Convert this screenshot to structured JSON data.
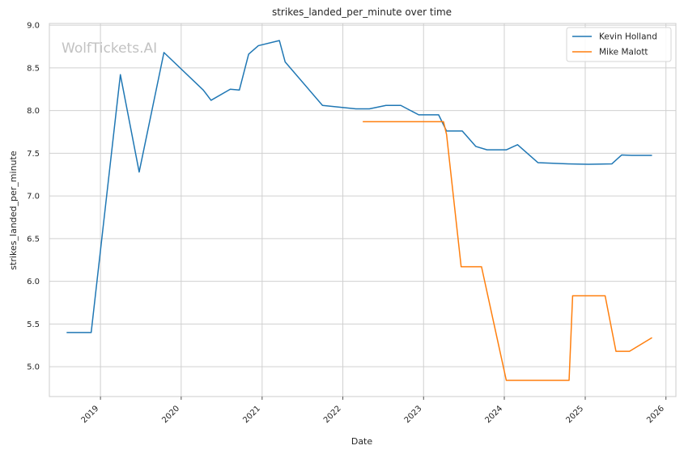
{
  "chart_data": {
    "type": "line",
    "title": "strikes_landed_per_minute over time",
    "xlabel": "Date",
    "ylabel": "strikes_landed_per_minute",
    "watermark": "WolfTickets.AI",
    "legend_position": "top-right",
    "grid": true,
    "xlim": [
      "2018-05-15",
      "2026-02-15"
    ],
    "ylim": [
      4.65,
      9.02
    ],
    "x_ticks": [
      "2019-01-01",
      "2020-01-01",
      "2021-01-01",
      "2022-01-01",
      "2023-01-01",
      "2024-01-01",
      "2025-01-01",
      "2026-01-01"
    ],
    "x_tick_labels": [
      "2019",
      "2020",
      "2021",
      "2022",
      "2023",
      "2024",
      "2025",
      "2026"
    ],
    "y_ticks": [
      5.0,
      5.5,
      6.0,
      6.5,
      7.0,
      7.5,
      8.0,
      8.5,
      9.0
    ],
    "y_tick_labels": [
      "5.0",
      "5.5",
      "6.0",
      "6.5",
      "7.0",
      "7.5",
      "8.0",
      "8.5",
      "9.0"
    ],
    "series": [
      {
        "name": "Kevin Holland",
        "color": "#1f77b4",
        "points": [
          [
            "2018-08-01",
            5.4
          ],
          [
            "2018-11-20",
            5.4
          ],
          [
            "2019-04-01",
            8.42
          ],
          [
            "2019-06-25",
            7.28
          ],
          [
            "2019-10-15",
            8.68
          ],
          [
            "2020-04-10",
            8.24
          ],
          [
            "2020-05-15",
            8.12
          ],
          [
            "2020-08-10",
            8.25
          ],
          [
            "2020-09-20",
            8.24
          ],
          [
            "2020-11-01",
            8.66
          ],
          [
            "2020-12-15",
            8.76
          ],
          [
            "2021-03-20",
            8.82
          ],
          [
            "2021-04-15",
            8.57
          ],
          [
            "2021-10-01",
            8.06
          ],
          [
            "2022-03-01",
            8.02
          ],
          [
            "2022-05-01",
            8.02
          ],
          [
            "2022-07-15",
            8.06
          ],
          [
            "2022-09-20",
            8.06
          ],
          [
            "2022-12-10",
            7.95
          ],
          [
            "2023-03-10",
            7.95
          ],
          [
            "2023-04-15",
            7.76
          ],
          [
            "2023-06-25",
            7.76
          ],
          [
            "2023-08-25",
            7.58
          ],
          [
            "2023-10-15",
            7.54
          ],
          [
            "2024-01-10",
            7.54
          ],
          [
            "2024-03-01",
            7.6
          ],
          [
            "2024-06-01",
            7.39
          ],
          [
            "2024-10-15",
            7.375
          ],
          [
            "2025-01-15",
            7.37
          ],
          [
            "2025-05-01",
            7.375
          ],
          [
            "2025-06-15",
            7.48
          ],
          [
            "2025-07-30",
            7.475
          ],
          [
            "2025-10-30",
            7.475
          ]
        ]
      },
      {
        "name": "Mike Malott",
        "color": "#ff7f0e",
        "points": [
          [
            "2022-04-01",
            7.87
          ],
          [
            "2023-04-01",
            7.87
          ],
          [
            "2023-04-15",
            7.72
          ],
          [
            "2023-06-20",
            6.17
          ],
          [
            "2023-09-20",
            6.17
          ],
          [
            "2024-01-10",
            4.84
          ],
          [
            "2024-10-20",
            4.84
          ],
          [
            "2024-11-05",
            5.83
          ],
          [
            "2025-04-01",
            5.83
          ],
          [
            "2025-05-20",
            5.18
          ],
          [
            "2025-07-20",
            5.18
          ],
          [
            "2025-10-30",
            5.34
          ]
        ]
      }
    ]
  }
}
